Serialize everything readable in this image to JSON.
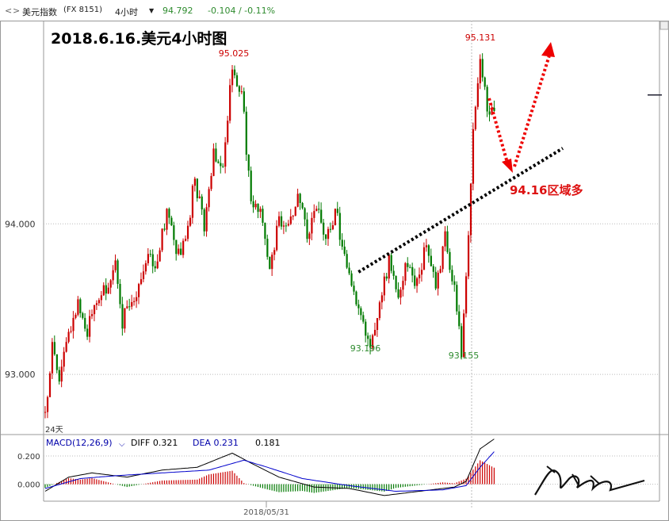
{
  "header": {
    "symbol_name": "美元指数",
    "symbol_code": "(FX 8151)",
    "period": "4小时",
    "price": "94.792",
    "change": "-0.104 / -0.11%",
    "nav_left": "<",
    "nav_right": ">"
  },
  "overlay_title": "2018.6.16.美元4小时图",
  "annotations": {
    "high1": "95.025",
    "high2": "95.131",
    "low1": "93.196",
    "low2": "93.155",
    "support_note": "94.16区域多",
    "days_label": "24天"
  },
  "macd": {
    "label": "MACD(12,26,9)",
    "diff_label": "DIFF 0.321",
    "dea_label": "DEA 0.231",
    "hist_label": "0.181"
  },
  "x_label": "2018/05/31",
  "colors": {
    "up": "#cc0000",
    "down": "#007a00",
    "diff_line": "#000000",
    "dea_line": "#0000cc",
    "arrow": "#ee0000",
    "trendline": "#000000",
    "accent_green": "#2e8b2e"
  },
  "chart_data": {
    "type": "candlestick",
    "title": "",
    "xlabel": "",
    "ylabel": "",
    "y_ticks": [
      93.0,
      94.0
    ],
    "y_tick_labels": [
      "93.000",
      "94.000"
    ],
    "ylim": [
      92.6,
      95.35
    ],
    "macd_ticks": [
      0.0,
      0.2
    ],
    "macd_tick_labels": [
      "0.000",
      "0.200"
    ],
    "macd_ylim": [
      -0.12,
      0.34
    ],
    "waypoints_close": [
      [
        0,
        92.75
      ],
      [
        3,
        93.2
      ],
      [
        6,
        93.0
      ],
      [
        10,
        93.3
      ],
      [
        14,
        93.45
      ],
      [
        18,
        93.3
      ],
      [
        22,
        93.5
      ],
      [
        26,
        93.55
      ],
      [
        30,
        93.7
      ],
      [
        33,
        93.35
      ],
      [
        36,
        93.45
      ],
      [
        40,
        93.6
      ],
      [
        44,
        93.8
      ],
      [
        48,
        93.75
      ],
      [
        52,
        94.1
      ],
      [
        56,
        93.8
      ],
      [
        60,
        93.9
      ],
      [
        64,
        94.3
      ],
      [
        68,
        93.95
      ],
      [
        72,
        94.5
      ],
      [
        76,
        94.38
      ],
      [
        80,
        95.025
      ],
      [
        84,
        94.88
      ],
      [
        88,
        94.15
      ],
      [
        92,
        94.1
      ],
      [
        96,
        93.7
      ],
      [
        100,
        94.05
      ],
      [
        104,
        94.0
      ],
      [
        108,
        94.2
      ],
      [
        112,
        93.9
      ],
      [
        116,
        94.1
      ],
      [
        120,
        93.9
      ],
      [
        124,
        94.1
      ],
      [
        128,
        93.8
      ],
      [
        132,
        93.55
      ],
      [
        136,
        93.35
      ],
      [
        139,
        93.196
      ],
      [
        143,
        93.45
      ],
      [
        147,
        93.75
      ],
      [
        151,
        93.5
      ],
      [
        155,
        93.75
      ],
      [
        159,
        93.6
      ],
      [
        163,
        93.85
      ],
      [
        167,
        93.6
      ],
      [
        171,
        93.9
      ],
      [
        175,
        93.55
      ],
      [
        178,
        93.155
      ],
      [
        181,
        93.9
      ],
      [
        183,
        94.6
      ],
      [
        186,
        95.131
      ],
      [
        189,
        94.8
      ],
      [
        192,
        94.75
      ]
    ],
    "macd_waypoints_diff": [
      [
        0,
        -0.05
      ],
      [
        10,
        0.05
      ],
      [
        20,
        0.08
      ],
      [
        35,
        0.05
      ],
      [
        50,
        0.1
      ],
      [
        65,
        0.12
      ],
      [
        80,
        0.22
      ],
      [
        88,
        0.15
      ],
      [
        100,
        0.05
      ],
      [
        115,
        -0.02
      ],
      [
        130,
        -0.03
      ],
      [
        145,
        -0.08
      ],
      [
        160,
        -0.05
      ],
      [
        175,
        -0.02
      ],
      [
        180,
        0.02
      ],
      [
        186,
        0.25
      ],
      [
        192,
        0.32
      ]
    ],
    "macd_waypoints_dea": [
      [
        0,
        -0.03
      ],
      [
        15,
        0.04
      ],
      [
        30,
        0.06
      ],
      [
        50,
        0.08
      ],
      [
        70,
        0.1
      ],
      [
        85,
        0.17
      ],
      [
        95,
        0.12
      ],
      [
        110,
        0.04
      ],
      [
        130,
        -0.01
      ],
      [
        150,
        -0.05
      ],
      [
        170,
        -0.04
      ],
      [
        180,
        -0.01
      ],
      [
        186,
        0.12
      ],
      [
        192,
        0.23
      ]
    ]
  }
}
